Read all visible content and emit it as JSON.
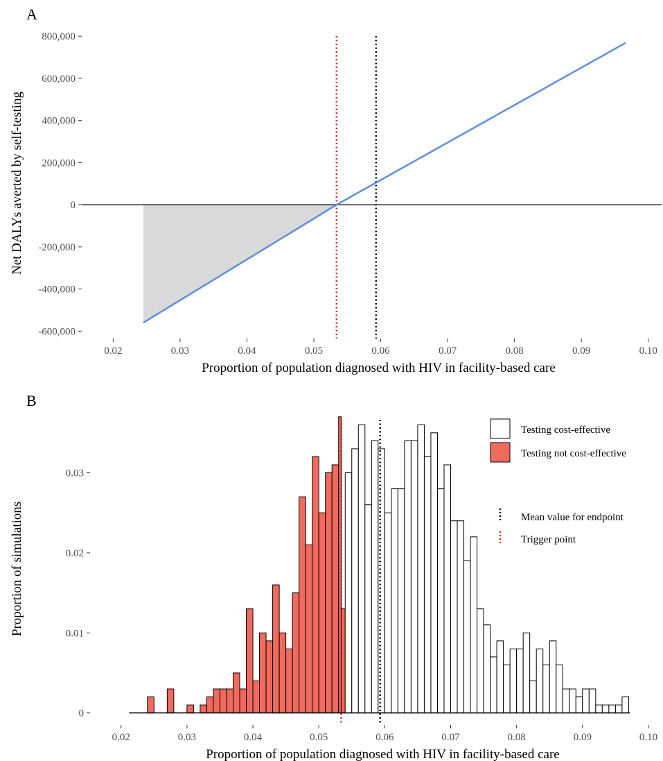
{
  "chart_data": [
    {
      "panel": "A",
      "type": "line",
      "xlabel": "Proportion of population diagnosed with HIV in facility-based care",
      "ylabel": "Net DALYs averted by self-testing",
      "xlim": [
        0.0153,
        0.102
      ],
      "ylim": [
        -635000,
        840000
      ],
      "x_ticks": [
        0.02,
        0.03,
        0.04,
        0.05,
        0.06,
        0.07,
        0.08,
        0.09,
        0.1
      ],
      "x_tick_labels": [
        "0.02",
        "0.03",
        "0.04",
        "0.05",
        "0.06",
        "0.07",
        "0.08",
        "0.09",
        "0.10"
      ],
      "y_ticks": [
        -600000,
        -400000,
        -200000,
        0,
        200000,
        400000,
        600000,
        800000
      ],
      "y_tick_labels": [
        "-600,000",
        "-400,000",
        "-200,000",
        "0",
        "200,000",
        "400,000",
        "600,000",
        "800,000"
      ],
      "grid": false,
      "series": [
        {
          "color": "#5b8fdf",
          "x": [
            0.0245,
            0.0534,
            0.0966
          ],
          "y": [
            -560000,
            0,
            768000
          ]
        }
      ],
      "shaded_region": {
        "color": "#d9d9d9",
        "x": [
          0.0245,
          0.0534
        ],
        "baseline": 0
      },
      "hline": {
        "y": 0,
        "color": "#000000"
      },
      "vlines": [
        {
          "x": 0.0534,
          "color": "#d7191c",
          "style": "dotted"
        },
        {
          "x": 0.0593,
          "color": "#000000",
          "style": "dotted"
        }
      ]
    },
    {
      "panel": "B",
      "type": "bar",
      "xlabel": "Proportion of population diagnosed with HIV in facility-based care",
      "ylabel": "Proportion of simulations",
      "xlim": [
        0.0153,
        0.102
      ],
      "ylim": [
        -0.0015,
        0.0375
      ],
      "x_ticks": [
        0.02,
        0.03,
        0.04,
        0.05,
        0.06,
        0.07,
        0.08,
        0.09,
        0.1
      ],
      "x_tick_labels": [
        "0.02",
        "0.03",
        "0.04",
        "0.05",
        "0.06",
        "0.07",
        "0.08",
        "0.09",
        "0.10"
      ],
      "y_ticks": [
        0,
        0.01,
        0.02,
        0.03
      ],
      "y_tick_labels": [
        "0",
        "0.01",
        "0.02",
        "0.03"
      ],
      "grid": false,
      "bin_width": 0.001,
      "bin_start": 0.024,
      "baseline_x_range": [
        0.0212,
        0.0972
      ],
      "not_cost_effective_color": "#f16a5e",
      "cost_effective_color": "#ffffff",
      "bins": [
        {
          "x": 0.024,
          "value": 0.002
        },
        {
          "x": 0.027,
          "value": 0.003
        },
        {
          "x": 0.03,
          "value": 0.001
        },
        {
          "x": 0.032,
          "value": 0.001
        },
        {
          "x": 0.033,
          "value": 0.002
        },
        {
          "x": 0.034,
          "value": 0.003
        },
        {
          "x": 0.035,
          "value": 0.003
        },
        {
          "x": 0.036,
          "value": 0.003
        },
        {
          "x": 0.037,
          "value": 0.005
        },
        {
          "x": 0.038,
          "value": 0.003
        },
        {
          "x": 0.039,
          "value": 0.013
        },
        {
          "x": 0.04,
          "value": 0.004
        },
        {
          "x": 0.041,
          "value": 0.01
        },
        {
          "x": 0.042,
          "value": 0.009
        },
        {
          "x": 0.043,
          "value": 0.016
        },
        {
          "x": 0.044,
          "value": 0.01
        },
        {
          "x": 0.045,
          "value": 0.008
        },
        {
          "x": 0.046,
          "value": 0.015
        },
        {
          "x": 0.047,
          "value": 0.027
        },
        {
          "x": 0.048,
          "value": 0.021
        },
        {
          "x": 0.049,
          "value": 0.032
        },
        {
          "x": 0.05,
          "value": 0.025
        },
        {
          "x": 0.051,
          "value": 0.03
        },
        {
          "x": 0.052,
          "value": 0.031
        },
        {
          "x": 0.053,
          "value": 0.037,
          "split_at": 0.0534,
          "right_value": 0.013
        },
        {
          "x": 0.054,
          "value": 0.03
        },
        {
          "x": 0.055,
          "value": 0.033
        },
        {
          "x": 0.056,
          "value": 0.036
        },
        {
          "x": 0.057,
          "value": 0.026
        },
        {
          "x": 0.058,
          "value": 0.034
        },
        {
          "x": 0.059,
          "value": 0.033
        },
        {
          "x": 0.06,
          "value": 0.025
        },
        {
          "x": 0.061,
          "value": 0.028
        },
        {
          "x": 0.062,
          "value": 0.028
        },
        {
          "x": 0.063,
          "value": 0.034
        },
        {
          "x": 0.064,
          "value": 0.034
        },
        {
          "x": 0.065,
          "value": 0.036
        },
        {
          "x": 0.066,
          "value": 0.032
        },
        {
          "x": 0.067,
          "value": 0.035
        },
        {
          "x": 0.068,
          "value": 0.028
        },
        {
          "x": 0.069,
          "value": 0.031
        },
        {
          "x": 0.07,
          "value": 0.024
        },
        {
          "x": 0.071,
          "value": 0.024
        },
        {
          "x": 0.072,
          "value": 0.019
        },
        {
          "x": 0.073,
          "value": 0.022
        },
        {
          "x": 0.074,
          "value": 0.013
        },
        {
          "x": 0.075,
          "value": 0.011
        },
        {
          "x": 0.076,
          "value": 0.007
        },
        {
          "x": 0.077,
          "value": 0.009
        },
        {
          "x": 0.078,
          "value": 0.006
        },
        {
          "x": 0.079,
          "value": 0.008
        },
        {
          "x": 0.08,
          "value": 0.008
        },
        {
          "x": 0.081,
          "value": 0.01
        },
        {
          "x": 0.082,
          "value": 0.004
        },
        {
          "x": 0.083,
          "value": 0.008
        },
        {
          "x": 0.084,
          "value": 0.006
        },
        {
          "x": 0.085,
          "value": 0.009
        },
        {
          "x": 0.086,
          "value": 0.006
        },
        {
          "x": 0.087,
          "value": 0.003
        },
        {
          "x": 0.088,
          "value": 0.003
        },
        {
          "x": 0.089,
          "value": 0.002
        },
        {
          "x": 0.09,
          "value": 0.003
        },
        {
          "x": 0.091,
          "value": 0.003
        },
        {
          "x": 0.092,
          "value": 0.001
        },
        {
          "x": 0.093,
          "value": 0.001
        },
        {
          "x": 0.094,
          "value": 0.001
        },
        {
          "x": 0.095,
          "value": 0.001
        },
        {
          "x": 0.096,
          "value": 0.002
        }
      ],
      "vlines": [
        {
          "x": 0.0534,
          "color": "#d7191c",
          "style": "dotted"
        },
        {
          "x": 0.0593,
          "color": "#000000",
          "style": "dotted"
        }
      ],
      "legend": {
        "placement": "top-right",
        "fill_entries": [
          {
            "label": "Testing cost-effective",
            "fill": "#ffffff"
          },
          {
            "label": "Testing not cost-effective",
            "fill": "#f16a5e"
          }
        ],
        "line_entries": [
          {
            "label": "Mean value for endpoint",
            "color": "#000000"
          },
          {
            "label": "Trigger point",
            "color": "#d7191c"
          }
        ]
      }
    }
  ],
  "panels": {
    "a_label": "A",
    "b_label": "B"
  }
}
